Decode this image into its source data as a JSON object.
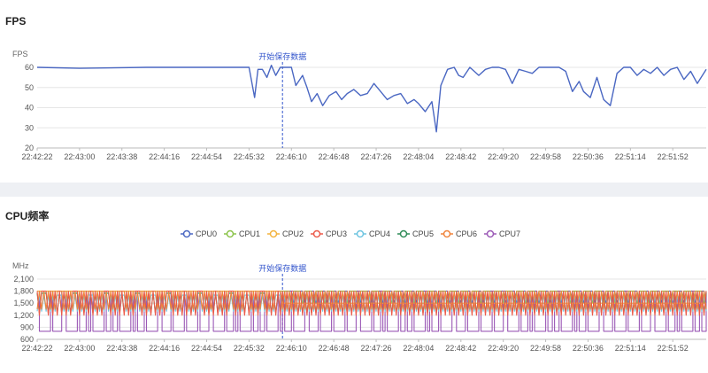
{
  "fps_panel": {
    "title": "FPS"
  },
  "cpu_panel": {
    "title": "CPU频率"
  },
  "chart_data": [
    {
      "type": "line",
      "title": "FPS",
      "ylabel": "FPS",
      "ylim": [
        20,
        60
      ],
      "yticks": [
        20,
        30,
        40,
        50,
        60
      ],
      "xticks": [
        "22:42:22",
        "22:43:00",
        "22:43:38",
        "22:44:16",
        "22:44:54",
        "22:45:32",
        "22:46:10",
        "22:46:48",
        "22:47:26",
        "22:48:04",
        "22:48:42",
        "22:49:20",
        "22:49:58",
        "22:50:36",
        "22:51:14",
        "22:51:52"
      ],
      "xlim": [
        "22:42:22",
        "22:52:22"
      ],
      "grid": true,
      "marker": {
        "time": "22:46:02",
        "label": "开始保存数据"
      },
      "series": [
        {
          "color": "#4a67c2",
          "x": [
            "22:42:22",
            "22:43:00",
            "22:44:00",
            "22:45:00",
            "22:45:32",
            "22:45:37",
            "22:45:40",
            "22:45:44",
            "22:45:48",
            "22:45:52",
            "22:45:56",
            "22:46:00",
            "22:46:05",
            "22:46:10",
            "22:46:14",
            "22:46:20",
            "22:46:24",
            "22:46:28",
            "22:46:33",
            "22:46:38",
            "22:46:44",
            "22:46:50",
            "22:46:55",
            "22:47:00",
            "22:47:06",
            "22:47:12",
            "22:47:18",
            "22:47:24",
            "22:47:30",
            "22:47:36",
            "22:47:42",
            "22:47:48",
            "22:47:54",
            "22:48:00",
            "22:48:04",
            "22:48:10",
            "22:48:16",
            "22:48:20",
            "22:48:24",
            "22:48:30",
            "22:48:36",
            "22:48:40",
            "22:48:44",
            "22:48:50",
            "22:48:54",
            "22:48:58",
            "22:49:04",
            "22:49:10",
            "22:49:16",
            "22:49:22",
            "22:49:28",
            "22:49:34",
            "22:49:40",
            "22:49:46",
            "22:49:52",
            "22:49:58",
            "22:50:04",
            "22:50:10",
            "22:50:16",
            "22:50:22",
            "22:50:28",
            "22:50:32",
            "22:50:38",
            "22:50:44",
            "22:50:50",
            "22:50:56",
            "22:51:02",
            "22:51:08",
            "22:51:14",
            "22:51:20",
            "22:51:26",
            "22:51:32",
            "22:51:38",
            "22:51:44",
            "22:51:50",
            "22:51:56",
            "22:52:02",
            "22:52:08",
            "22:52:14",
            "22:52:22"
          ],
          "values": [
            60,
            59.5,
            60,
            60,
            60,
            45,
            59,
            59,
            55,
            61,
            56,
            60,
            60,
            60,
            51,
            56,
            50,
            43,
            47,
            41,
            46,
            48,
            44,
            47,
            49,
            46,
            47,
            52,
            48,
            44,
            46,
            47,
            42,
            44,
            42,
            38,
            43,
            28,
            51,
            59,
            60,
            56,
            55,
            60,
            58,
            56,
            59,
            60,
            60,
            59,
            52,
            59,
            58,
            57,
            60,
            60,
            60,
            60,
            58,
            48,
            53,
            48,
            45,
            55,
            44,
            41,
            57,
            60,
            60,
            56,
            59,
            57,
            60,
            56,
            59,
            60,
            54,
            58,
            52,
            59
          ]
        }
      ]
    },
    {
      "type": "line",
      "title": "CPU频率",
      "ylabel": "MHz",
      "ylim": [
        600,
        2100
      ],
      "yticks": [
        600,
        900,
        1200,
        1500,
        1800,
        2100
      ],
      "ytick_labels": [
        "600",
        "900",
        "1,200",
        "1,500",
        "1,800",
        "2,100"
      ],
      "xticks": [
        "22:42:22",
        "22:43:00",
        "22:43:38",
        "22:44:16",
        "22:44:54",
        "22:45:32",
        "22:46:10",
        "22:46:48",
        "22:47:26",
        "22:48:04",
        "22:48:42",
        "22:49:20",
        "22:49:58",
        "22:50:36",
        "22:51:14",
        "22:51:52"
      ],
      "xlim": [
        "22:42:22",
        "22:52:22"
      ],
      "grid": true,
      "legend_position": "top-center",
      "marker": {
        "time": "22:46:02",
        "label": "开始保存数据"
      },
      "series": [
        {
          "name": "CPU0",
          "color": "#4a67c2",
          "pattern": "flat",
          "levels": [
            1800
          ]
        },
        {
          "name": "CPU1",
          "color": "#8bc34a",
          "pattern": "flat",
          "levels": [
            1800
          ]
        },
        {
          "name": "CPU2",
          "color": "#f3b33d",
          "pattern": "flat",
          "levels": [
            1800
          ]
        },
        {
          "name": "CPU3",
          "color": "#ec5b4a",
          "pattern": "oscillate",
          "levels": [
            1200,
            1800
          ]
        },
        {
          "name": "CPU4",
          "color": "#6ec4e0",
          "pattern": "oscillate",
          "levels": [
            1300,
            1700
          ]
        },
        {
          "name": "CPU5",
          "color": "#2e8b57",
          "pattern": "oscillate",
          "levels": [
            1250,
            1750
          ]
        },
        {
          "name": "CPU6",
          "color": "#f0843c",
          "pattern": "oscillate",
          "levels": [
            1350,
            1800
          ]
        },
        {
          "name": "CPU7",
          "color": "#9b59b6",
          "pattern": "spikes",
          "levels": [
            800,
            1800
          ]
        }
      ]
    }
  ]
}
